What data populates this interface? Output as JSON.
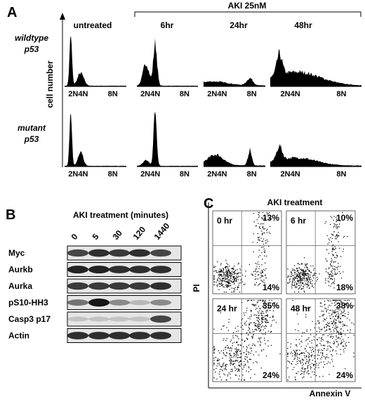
{
  "panel_a": {
    "label": "A",
    "header": "AKI  25nM",
    "columns": [
      "untreated",
      "6hr",
      "24hr",
      "48hr"
    ],
    "rows": [
      {
        "line1": "wildtype",
        "line2": "p53"
      },
      {
        "line1": "mutant",
        "line2": "p53"
      }
    ],
    "y_label": "cell number",
    "x_label_low": "2N4N",
    "x_label_high": "8N"
  },
  "panel_b": {
    "label": "B",
    "title": "AKI treatment (minutes)",
    "time_points": [
      "0",
      "5",
      "30",
      "120",
      "1440"
    ],
    "rows": [
      "Myc",
      "Aurkb",
      "Aurka",
      "pS10-HH3",
      "Casp3 p17",
      "Actin"
    ]
  },
  "panel_c": {
    "label": "C",
    "title": "AKI treatment",
    "y_label": "PI",
    "x_label": "Annexin V",
    "plots": [
      {
        "time": "0 hr",
        "upper_right": "13%",
        "lower_right": "14%"
      },
      {
        "time": "6 hr",
        "upper_right": "10%",
        "lower_right": "18%"
      },
      {
        "time": "24 hr",
        "upper_right": "35%",
        "lower_right": "24%"
      },
      {
        "time": "48 hr",
        "upper_right": "38%",
        "lower_right": "24%"
      }
    ]
  }
}
